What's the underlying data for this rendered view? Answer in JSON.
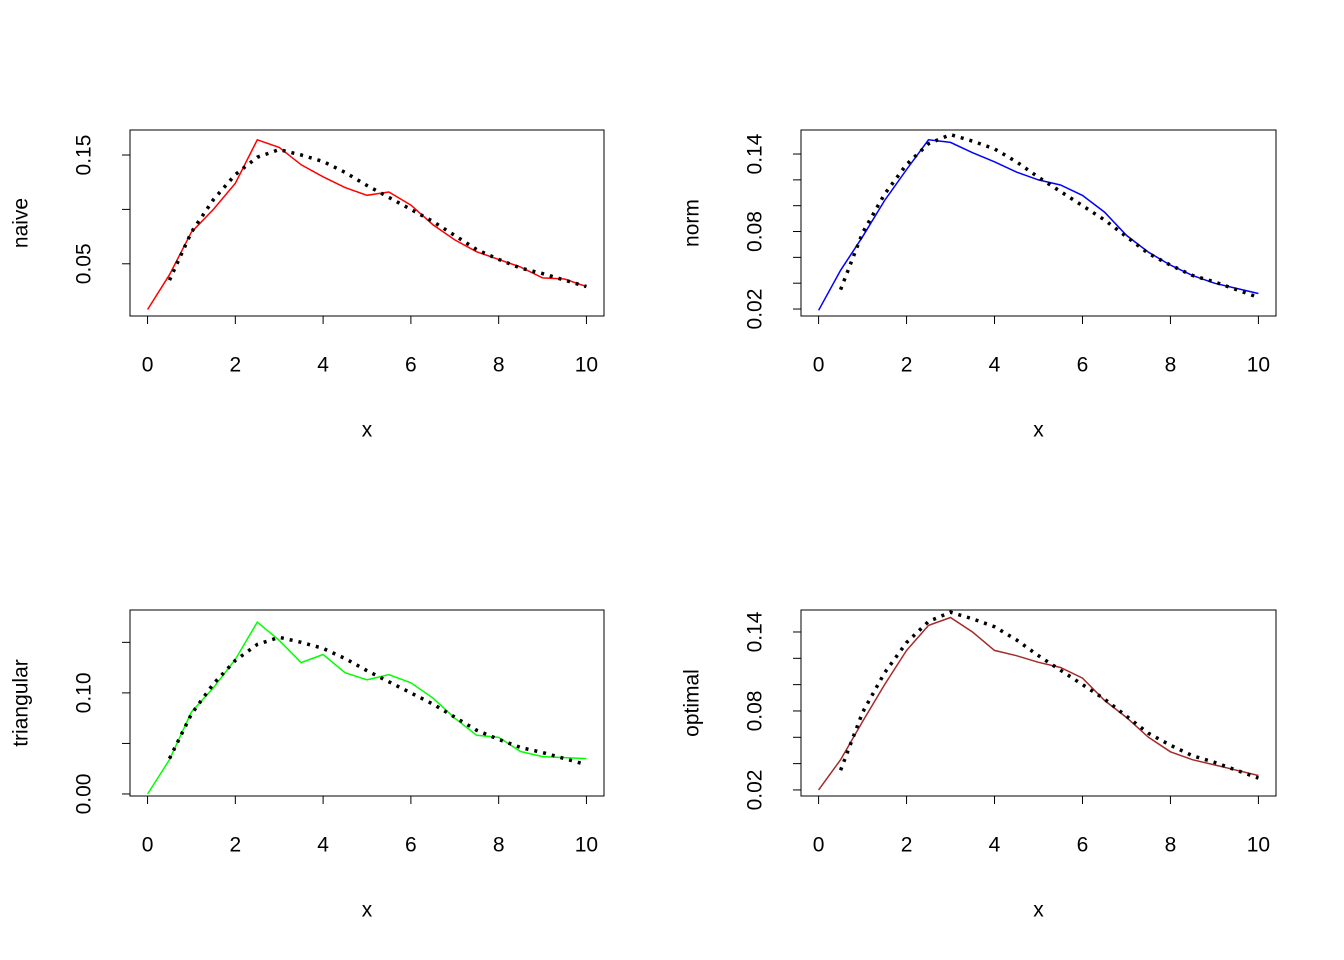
{
  "chart_data": [
    {
      "type": "line",
      "xlabel": "x",
      "ylabel": "naive",
      "x": [
        0,
        0.5,
        1,
        1.5,
        2,
        2.5,
        3,
        3.5,
        4,
        4.5,
        5,
        5.5,
        6,
        6.5,
        7,
        7.5,
        8,
        8.5,
        9,
        9.5,
        10
      ],
      "xlim": [
        -0.4,
        10.4
      ],
      "xticks": [
        0,
        2,
        4,
        6,
        8,
        10
      ],
      "ylim": [
        0.002,
        0.173
      ],
      "yticks": [
        0.05,
        {
          "value": 0.1,
          "label": null
        },
        0.15
      ],
      "series": [
        {
          "color": "#ff0000",
          "linestyle": "solid",
          "values": [
            0.008,
            0.04,
            0.079,
            0.1,
            0.124,
            0.164,
            0.157,
            0.141,
            0.13,
            0.12,
            0.113,
            0.116,
            0.104,
            0.086,
            0.072,
            0.061,
            0.054,
            0.047,
            0.037,
            0.036,
            0.029
          ]
        },
        {
          "color": "#000000",
          "linestyle": "dotted",
          "values": [
            null,
            0.035,
            0.079,
            0.109,
            0.132,
            0.148,
            0.155,
            0.15,
            0.144,
            0.134,
            0.122,
            0.111,
            0.1,
            0.089,
            0.076,
            0.063,
            0.054,
            0.046,
            0.041,
            0.035,
            0.029
          ]
        }
      ]
    },
    {
      "type": "line",
      "xlabel": "x",
      "ylabel": "norm",
      "x": [
        0,
        0.5,
        1,
        1.5,
        2,
        2.5,
        3,
        3.5,
        4,
        4.5,
        5,
        5.5,
        6,
        6.5,
        7,
        7.5,
        8,
        8.5,
        9,
        9.5,
        10
      ],
      "xlim": [
        -0.4,
        10.4
      ],
      "xticks": [
        0,
        2,
        4,
        6,
        8,
        10
      ],
      "ylim": [
        0.0146,
        0.1586
      ],
      "yticks": [
        0.02,
        {
          "value": 0.04,
          "label": null
        },
        {
          "value": 0.06,
          "label": null
        },
        0.08,
        {
          "value": 0.1,
          "label": null
        },
        {
          "value": 0.12,
          "label": null
        },
        0.14
      ],
      "series": [
        {
          "color": "#0000ff",
          "linestyle": "solid",
          "values": [
            0.019,
            0.05,
            0.076,
            0.104,
            0.128,
            0.151,
            0.149,
            0.141,
            0.134,
            0.126,
            0.12,
            0.116,
            0.108,
            0.095,
            0.077,
            0.064,
            0.054,
            0.046,
            0.04,
            0.036,
            0.032
          ]
        },
        {
          "color": "#000000",
          "linestyle": "dotted",
          "values": [
            null,
            0.035,
            0.079,
            0.109,
            0.132,
            0.148,
            0.155,
            0.15,
            0.144,
            0.134,
            0.122,
            0.111,
            0.1,
            0.089,
            0.076,
            0.063,
            0.054,
            0.046,
            0.041,
            0.035,
            0.029
          ]
        }
      ]
    },
    {
      "type": "line",
      "xlabel": "x",
      "ylabel": "triangular",
      "x": [
        0,
        0.5,
        1,
        1.5,
        2,
        2.5,
        3,
        3.5,
        4,
        4.5,
        5,
        5.5,
        6,
        6.5,
        7,
        7.5,
        8,
        8.5,
        9,
        9.5,
        10
      ],
      "xlim": [
        -0.4,
        10.4
      ],
      "xticks": [
        0,
        2,
        4,
        6,
        8,
        10
      ],
      "ylim": [
        -0.002,
        0.182
      ],
      "yticks": [
        {
          "value": 0,
          "label": "0.00"
        },
        {
          "value": 0.05,
          "label": null
        },
        {
          "value": 0.1,
          "label": "0.10"
        },
        {
          "value": 0.15,
          "label": null
        }
      ],
      "series": [
        {
          "color": "#00ff00",
          "linestyle": "solid",
          "values": [
            0.0,
            0.034,
            0.081,
            0.105,
            0.133,
            0.17,
            0.152,
            0.13,
            0.138,
            0.12,
            0.113,
            0.118,
            0.11,
            0.095,
            0.075,
            0.058,
            0.056,
            0.042,
            0.037,
            0.036,
            0.035
          ]
        },
        {
          "color": "#000000",
          "linestyle": "dotted",
          "values": [
            null,
            0.035,
            0.079,
            0.109,
            0.132,
            0.148,
            0.155,
            0.15,
            0.144,
            0.134,
            0.122,
            0.111,
            0.1,
            0.089,
            0.076,
            0.063,
            0.054,
            0.046,
            0.041,
            0.035,
            0.029
          ]
        }
      ]
    },
    {
      "type": "line",
      "xlabel": "x",
      "ylabel": "optimal",
      "x": [
        0,
        0.5,
        1,
        1.5,
        2,
        2.5,
        3,
        3.5,
        4,
        4.5,
        5,
        5.5,
        6,
        6.5,
        7,
        7.5,
        8,
        8.5,
        9,
        9.5,
        10
      ],
      "xlim": [
        -0.4,
        10.4
      ],
      "xticks": [
        0,
        2,
        4,
        6,
        8,
        10
      ],
      "ylim": [
        0.0154,
        0.1567
      ],
      "yticks": [
        0.02,
        {
          "value": 0.04,
          "label": null
        },
        {
          "value": 0.06,
          "label": null
        },
        0.08,
        {
          "value": 0.1,
          "label": null
        },
        {
          "value": 0.12,
          "label": null
        },
        0.14
      ],
      "series": [
        {
          "color": "#a52a2a",
          "linestyle": "solid",
          "values": [
            0.02,
            0.043,
            0.072,
            0.1,
            0.126,
            0.145,
            0.151,
            0.14,
            0.126,
            0.122,
            0.117,
            0.113,
            0.105,
            0.088,
            0.075,
            0.06,
            0.049,
            0.043,
            0.039,
            0.035,
            0.031
          ]
        },
        {
          "color": "#000000",
          "linestyle": "dotted",
          "values": [
            null,
            0.035,
            0.079,
            0.109,
            0.132,
            0.148,
            0.155,
            0.15,
            0.144,
            0.134,
            0.122,
            0.111,
            0.1,
            0.089,
            0.076,
            0.063,
            0.054,
            0.046,
            0.041,
            0.035,
            0.029
          ]
        }
      ]
    }
  ]
}
